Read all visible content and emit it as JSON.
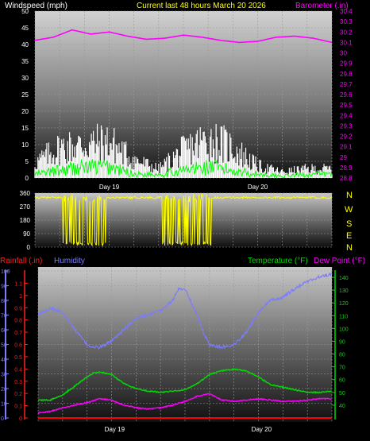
{
  "header": {
    "left_label": "Windspeed (mph)",
    "center_label": "Current last 48 hours March 20 2026",
    "right_label": "Barometer (.in)"
  },
  "middle": {
    "compass_labels": [
      "N",
      "W",
      "S",
      "E",
      "N"
    ]
  },
  "lower_header": {
    "rainfall_label": "Rainfall (.in)",
    "humidity_label": "Humidity",
    "temperature_label": "Temperature (°F)",
    "dewpoint_label": "Dew Point (°F)"
  },
  "colors": {
    "wind": "#ffffff",
    "gust": "#00ff00",
    "barometer": "#ff00ff",
    "direction": "#ffff00",
    "rain": "#ff0000",
    "humidity": "#7b7bff",
    "temperature": "#00dd00",
    "dewpoint": "#ff00ff",
    "title": "#ffff00"
  },
  "chart_data": [
    {
      "type": "line",
      "name": "wind-barometer",
      "x_ticks": [
        "Day 19",
        "Day 20"
      ],
      "left_axis": {
        "label": "Windspeed (mph)",
        "ylim": [
          0,
          50
        ],
        "ticks": [
          0,
          5,
          10,
          15,
          20,
          25,
          30,
          35,
          40,
          45,
          50
        ]
      },
      "right_axis": {
        "label": "Barometer (.in)",
        "ylim": [
          28.8,
          30.4
        ],
        "ticks": [
          "28.8",
          "28.9",
          "29",
          "29.1",
          "29.2",
          "29.3",
          "29.4",
          "29.5",
          "29.6",
          "29.7",
          "29.8",
          "29.9",
          "30",
          "30.1",
          "30.2",
          "30.3",
          "30.4"
        ]
      },
      "series": [
        {
          "name": "Windspeed",
          "color": "#ffffff",
          "profile": {
            "hours": [
              0,
              4,
              8,
              12,
              16,
              20,
              24,
              28,
              32,
              36,
              40,
              44,
              48
            ],
            "values": [
              5,
              10,
              11,
              12,
              6,
              3,
              9,
              13,
              10,
              4,
              2,
              3,
              3
            ]
          }
        },
        {
          "name": "Gust",
          "color": "#00ff00",
          "profile": {
            "hours": [
              0,
              4,
              8,
              12,
              16,
              20,
              24,
              28,
              32,
              36,
              40,
              44,
              48
            ],
            "values": [
              1,
              2,
              3,
              3,
              1,
              1,
              2,
              3,
              2,
              1,
              0.5,
              1,
              1
            ]
          }
        },
        {
          "name": "Barometer",
          "color": "#ff00ff",
          "profile": {
            "hours": [
              0,
              3,
              6,
              9,
              12,
              15,
              18,
              21,
              24,
              27,
              30,
              33,
              36,
              39,
              42,
              45,
              48
            ],
            "values": [
              30.12,
              30.15,
              30.22,
              30.18,
              30.2,
              30.16,
              30.13,
              30.14,
              30.17,
              30.15,
              30.12,
              30.1,
              30.11,
              30.15,
              30.16,
              30.14,
              30.1
            ]
          }
        }
      ]
    },
    {
      "type": "line",
      "name": "wind-direction",
      "ylim": [
        0,
        360
      ],
      "ticks": [
        0,
        90,
        180,
        270,
        360
      ],
      "series": [
        {
          "name": "Wind Direction",
          "color": "#ffff00",
          "base": 330,
          "variable_periods_hours": [
            [
              4.5,
              11.5
            ],
            [
              20.5,
              28.5
            ]
          ]
        }
      ]
    },
    {
      "type": "line",
      "name": "rain-humidity-temperature",
      "x_ticks": [
        "Day 19",
        "Day 20"
      ],
      "humidity_axis": {
        "ylim": [
          0,
          100
        ],
        "ticks": [
          0,
          10,
          20,
          30,
          40,
          50,
          60,
          70,
          80,
          90,
          100
        ]
      },
      "rain_axis": {
        "ylim": [
          0,
          1.2
        ],
        "ticks": [
          "0",
          "0.1",
          "0.2",
          "0.3",
          "0.4",
          "0.5",
          "0.6",
          "0.7",
          "0.8",
          "0.9",
          "1",
          "1.1"
        ]
      },
      "temperature_axis": {
        "ylim": [
          30,
          145
        ],
        "ticks": [
          40,
          50,
          60,
          70,
          80,
          90,
          100,
          110,
          120,
          130,
          140
        ]
      },
      "series": [
        {
          "name": "Humidity",
          "color": "#7b7bff",
          "hours": [
            0,
            2,
            4,
            6,
            8,
            9,
            10,
            12,
            14,
            16,
            18,
            20,
            22,
            23,
            24,
            26,
            27,
            28,
            30,
            32,
            34,
            36,
            38,
            40,
            42,
            44,
            46,
            48
          ],
          "values": [
            70,
            75,
            72,
            60,
            50,
            48,
            48,
            52,
            60,
            68,
            70,
            73,
            80,
            88,
            88,
            70,
            58,
            50,
            48,
            50,
            58,
            72,
            80,
            82,
            88,
            93,
            96,
            98
          ]
        },
        {
          "name": "Temperature",
          "color": "#00dd00",
          "hours": [
            0,
            2,
            4,
            6,
            8,
            9,
            10,
            12,
            14,
            16,
            18,
            20,
            22,
            24,
            26,
            28,
            30,
            32,
            34,
            36,
            38,
            40,
            42,
            44,
            46,
            48
          ],
          "values": [
            44,
            44,
            48,
            55,
            62,
            65,
            66,
            64,
            57,
            53,
            51,
            50,
            51,
            52,
            57,
            64,
            67,
            68,
            67,
            62,
            56,
            54,
            52,
            50,
            50,
            51
          ]
        },
        {
          "name": "Dew Point",
          "color": "#ff00ff",
          "hours": [
            0,
            2,
            4,
            6,
            8,
            10,
            12,
            14,
            16,
            18,
            20,
            22,
            24,
            26,
            28,
            30,
            32,
            34,
            36,
            38,
            40,
            42,
            44,
            46,
            48
          ],
          "values": [
            34,
            35,
            38,
            40,
            42,
            45,
            44,
            40,
            38,
            37,
            38,
            40,
            43,
            47,
            49,
            44,
            43,
            44,
            45,
            44,
            43,
            43,
            44,
            45,
            45
          ]
        },
        {
          "name": "Rainfall",
          "color": "#ff0000",
          "hours": [
            0,
            48
          ],
          "values": [
            0,
            0
          ]
        }
      ]
    }
  ]
}
